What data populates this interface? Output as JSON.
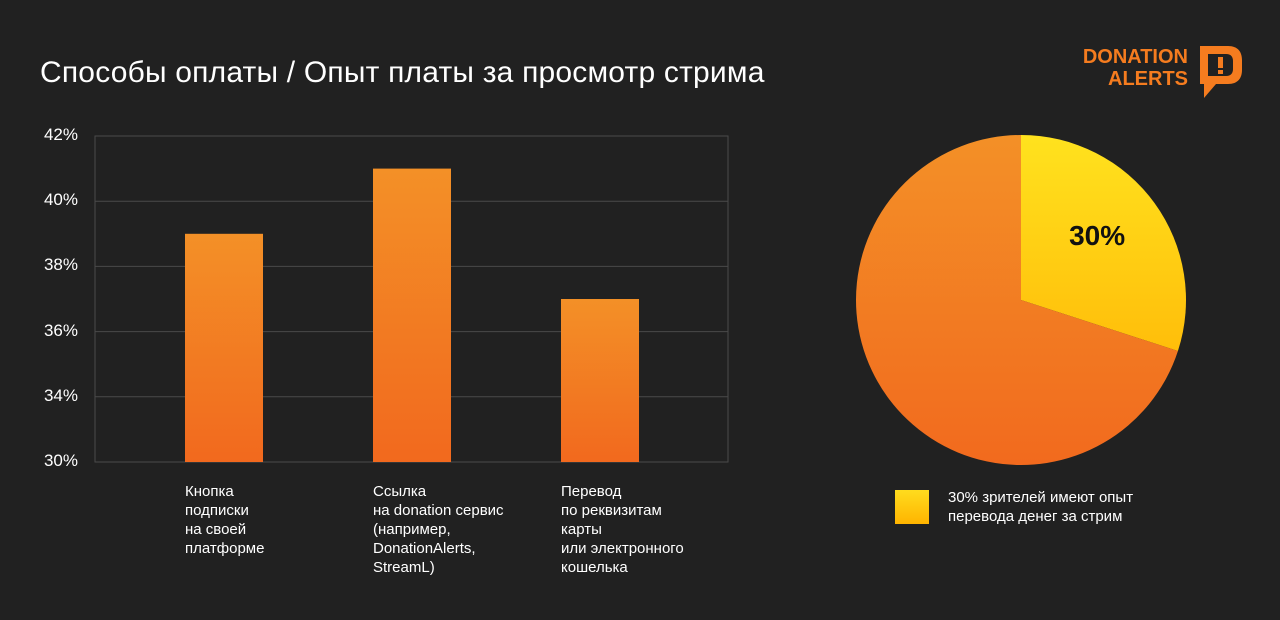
{
  "header": {
    "title": "Способы оплаты / Опыт платы за просмотр стрима",
    "logo_line1": "DONATION",
    "logo_line2": "ALERTS"
  },
  "colors": {
    "background": "#212121",
    "bar_top": "#f39027",
    "bar_bottom": "#f2691e",
    "pie_main": "#f4801f",
    "pie_slice": "#ffd21a",
    "grid": "#4a4a4a"
  },
  "chart_data": [
    {
      "type": "bar",
      "categories": [
        "Кнопка\nподписки\nна своей\nплатформе",
        "Ссылка\nна donation сервис\n(например,\nDonationAlerts,\nStreamL)",
        "Перевод\nпо реквизитам\nкарты\nили электронного\nкошелька"
      ],
      "values": [
        39,
        41,
        37
      ],
      "ylim": [
        30,
        42
      ],
      "yticks": [
        30,
        34,
        36,
        38,
        40,
        42
      ],
      "ytick_labels": [
        "30%",
        "34%",
        "36%",
        "38%",
        "40%",
        "42%"
      ],
      "grid": true,
      "title": "",
      "xlabel": "",
      "ylabel": ""
    },
    {
      "type": "pie",
      "slices": [
        {
          "label": "30%",
          "value": 30
        },
        {
          "label": "",
          "value": 70
        }
      ],
      "legend": [
        {
          "text": "30% зрителей имеют опыт перевода денег за стрим"
        }
      ],
      "legend_placement": "bottom"
    }
  ]
}
